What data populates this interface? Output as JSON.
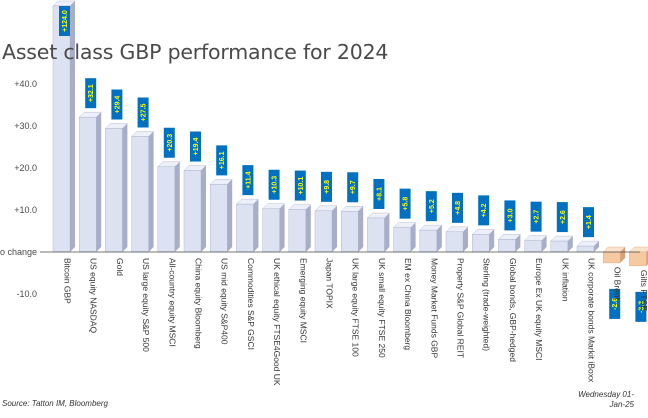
{
  "chart_data": {
    "type": "bar",
    "title": "Asset class GBP performance for 2024",
    "xlabel": "",
    "ylabel": "",
    "ylim": [
      -12,
      48
    ],
    "yticks": [
      -10,
      0,
      10,
      20,
      30,
      40
    ],
    "ytick_labels": [
      "-10.0",
      "o change",
      "+10.0",
      "+20.0",
      "+30.0",
      "+40.0"
    ],
    "categories": [
      "Bitcoin GBP",
      "US equity NASDAQ",
      "Gold",
      "US large equity S&P 500",
      "All-country equity MSCI",
      "China equity Bloomberg",
      "US mid equity S&P400",
      "Commodities S&P GSCI",
      "UK ethical equity FTSE4Good UK",
      "Emerging equity MSCI",
      "Japan TOPIX",
      "UK large equity FTSE 100",
      "UK small equity FTSE 250",
      "EM ex China Bloomberg",
      "Money Market Funds GBP",
      "Property S&P Global REIT",
      "Sterling (trade-weighted)",
      "Global bonds, GBP-hedged",
      "Europe Ex UK equity MSCI",
      "UK inflation",
      "UK corporate bonds Markit iBoxx",
      "Oil Brent",
      "Gilts FTSE"
    ],
    "values": [
      124.0,
      32.1,
      29.4,
      27.5,
      20.3,
      19.4,
      16.1,
      11.4,
      10.3,
      10.1,
      9.8,
      9.7,
      8.1,
      5.8,
      5.2,
      4.8,
      4.2,
      3.0,
      2.7,
      2.6,
      1.4,
      -2.6,
      -3.3
    ],
    "data_labels": [
      "+124.0",
      "+32.1",
      "+29.4",
      "+27.5",
      "+20.3",
      "+19.4",
      "+16.1",
      "+11.4",
      "+10.3",
      "+10.1",
      "+9.8",
      "+9.7",
      "+8.1",
      "+5.8",
      "+5.2",
      "+4.8",
      "+4.2",
      "+3.0",
      "+2.7",
      "+2.6",
      "+1.4",
      "-2.6",
      "-3.3"
    ],
    "grid": false,
    "legend": "none",
    "colors": {
      "positive_front": "#dde2f2",
      "positive_side": "#a7aec8",
      "positive_top": "#eef0f9",
      "negative_front": "#f7c9a2",
      "negative_side": "#d9a37a",
      "negative_top": "#fbe2cb",
      "label_fill": "#0071c1",
      "label_text": "#ffff00",
      "axis_text": "#4a4a4a",
      "zero_line": "#4a4a4a"
    }
  },
  "footer": {
    "source": "Source: Tatton IM, Bloomberg",
    "date_line1": "Wednesday 01-",
    "date_line2": "Jan-25"
  }
}
